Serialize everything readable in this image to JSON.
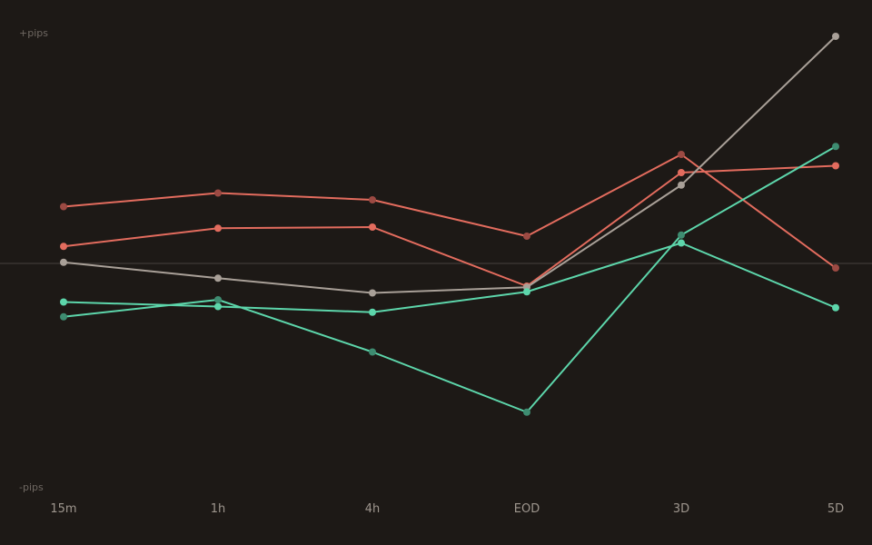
{
  "chart_data": {
    "type": "line",
    "title": "",
    "xlabel": "",
    "ylabel": "",
    "y_top_label": "+pips",
    "y_bottom_label": "-pips",
    "categories": [
      "15m",
      "1h",
      "4h",
      "EOD",
      "3D",
      "5D"
    ],
    "ylim": [
      -100,
      100
    ],
    "baseline": 0,
    "grid": false,
    "legend": "none",
    "series": [
      {
        "color": "#e36c5e",
        "marker_color": "#9c4a43",
        "values": [
          25,
          31,
          28,
          12,
          48,
          -2
        ]
      },
      {
        "color": "#e36c5e",
        "marker_color": "#e36c5e",
        "values": [
          7.5,
          15.5,
          16,
          -10,
          40,
          43
        ]
      },
      {
        "color": "#a9a098",
        "marker_color": "#a9a098",
        "values": [
          0.5,
          -6.5,
          -13,
          -10.5,
          34.5,
          100
        ]
      },
      {
        "color": "#5dd6ab",
        "marker_color": "#5dd6ab",
        "values": [
          -17,
          -19,
          -21.5,
          -12.5,
          9,
          -19.5
        ]
      },
      {
        "color": "#5dd6ab",
        "marker_color": "#3e8c71",
        "values": [
          -23.5,
          -16,
          -39,
          -65.5,
          12.5,
          51.5
        ]
      }
    ],
    "colors": {
      "background": "#1d1916",
      "baseline": "#3a3430",
      "tick_text": "#9e968e",
      "axis_note_text": "#6f6862"
    }
  }
}
